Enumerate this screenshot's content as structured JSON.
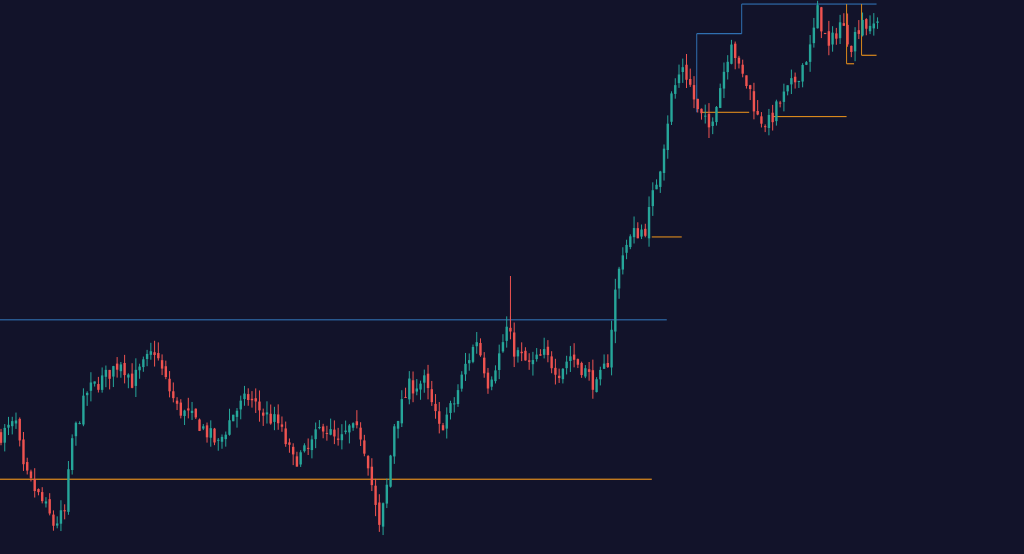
{
  "chart_data": {
    "type": "candlestick",
    "title": "",
    "xlabel": "",
    "ylabel": "",
    "grid": false,
    "legend": "none",
    "y_range": [
      0,
      100
    ],
    "x_range": [
      0,
      244
    ],
    "colors": {
      "background": "#12132a",
      "up": "#26a69a",
      "down": "#ef5350",
      "resistance": "#2f6fb0",
      "support": "#d9881c"
    },
    "waypoints": [
      [
        0,
        20
      ],
      [
        4,
        22
      ],
      [
        6,
        13
      ],
      [
        12,
        6
      ],
      [
        14,
        3
      ],
      [
        17,
        5
      ],
      [
        19,
        19
      ],
      [
        23,
        28
      ],
      [
        28,
        31
      ],
      [
        32,
        34
      ],
      [
        35,
        30
      ],
      [
        38,
        33
      ],
      [
        41,
        36
      ],
      [
        44,
        30
      ],
      [
        47,
        25
      ],
      [
        53,
        22
      ],
      [
        58,
        18
      ],
      [
        62,
        24
      ],
      [
        66,
        27
      ],
      [
        70,
        24
      ],
      [
        74,
        22
      ],
      [
        78,
        15
      ],
      [
        82,
        17
      ],
      [
        86,
        22
      ],
      [
        90,
        18
      ],
      [
        93,
        21
      ],
      [
        96,
        20
      ],
      [
        98,
        15
      ],
      [
        100,
        6
      ],
      [
        101,
        2
      ],
      [
        103,
        10
      ],
      [
        105,
        22
      ],
      [
        109,
        29
      ],
      [
        113,
        30
      ],
      [
        117,
        21
      ],
      [
        121,
        26
      ],
      [
        124,
        33
      ],
      [
        127,
        38
      ],
      [
        130,
        30
      ],
      [
        133,
        35
      ],
      [
        135,
        40
      ],
      [
        137,
        36
      ],
      [
        141,
        33
      ],
      [
        145,
        35
      ],
      [
        149,
        32
      ],
      [
        152,
        35
      ],
      [
        156,
        32
      ],
      [
        159,
        29
      ],
      [
        162,
        34
      ],
      [
        164,
        47
      ],
      [
        166,
        55
      ],
      [
        169,
        58
      ],
      [
        172,
        59
      ],
      [
        176,
        71
      ],
      [
        179,
        84
      ],
      [
        182,
        90
      ],
      [
        184,
        86
      ],
      [
        186,
        81
      ],
      [
        189,
        78
      ],
      [
        192,
        86
      ],
      [
        195,
        95
      ],
      [
        197,
        89
      ],
      [
        200,
        85
      ],
      [
        202,
        80
      ],
      [
        205,
        79
      ],
      [
        208,
        83
      ],
      [
        212,
        87
      ],
      [
        216,
        93
      ],
      [
        218,
        100
      ],
      [
        221,
        93
      ],
      [
        224,
        98
      ],
      [
        227,
        94
      ],
      [
        230,
        99
      ],
      [
        232,
        96
      ],
      [
        234,
        99
      ]
    ],
    "levels": [
      {
        "kind": "resistance",
        "y": 41.7,
        "x_from": 0,
        "x_to": 178
      },
      {
        "kind": "support",
        "y": 11.5,
        "x_from": 0,
        "x_to": 174
      },
      {
        "kind": "support",
        "y": 57.4,
        "x_from": 174,
        "x_to": 182
      },
      {
        "kind": "resistance",
        "y": 95.9,
        "x_from": 186,
        "x_to": 198
      },
      {
        "kind": "resistance",
        "y": 101.5,
        "x_from": 198,
        "x_to": 234
      },
      {
        "kind": "support",
        "y": 81.0,
        "x_from": 187,
        "x_to": 200
      },
      {
        "kind": "support",
        "y": 80.2,
        "x_from": 206,
        "x_to": 226
      },
      {
        "kind": "support",
        "y": 90.2,
        "x_from": 226,
        "x_to": 228
      },
      {
        "kind": "support",
        "y": 91.8,
        "x_from": 230,
        "x_to": 234
      }
    ]
  }
}
